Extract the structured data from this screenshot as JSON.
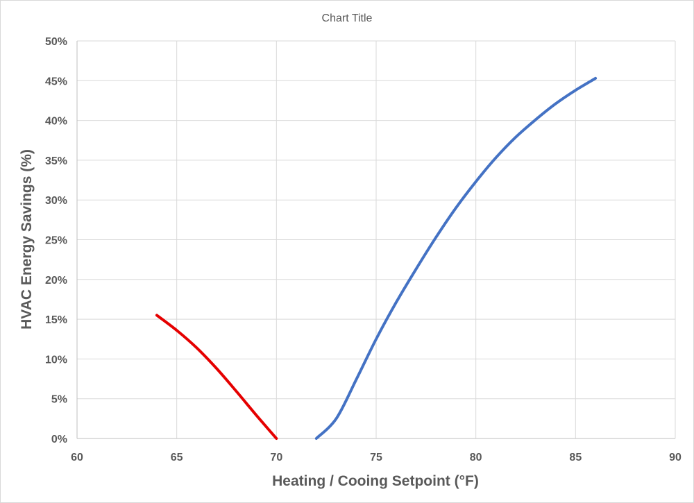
{
  "chart_data": {
    "type": "line",
    "title": "Chart Title",
    "xlabel": "Heating / Cooing Setpoint (°F)",
    "ylabel": "HVAC Energy Savings (%)",
    "xlim": [
      60,
      90
    ],
    "ylim": [
      0,
      50
    ],
    "x_ticks": [
      60,
      65,
      70,
      75,
      80,
      85,
      90
    ],
    "y_ticks": [
      0,
      5,
      10,
      15,
      20,
      25,
      30,
      35,
      40,
      45,
      50
    ],
    "y_tick_suffix": "%",
    "grid": true,
    "legend": "none",
    "series": [
      {
        "color": "#e50000",
        "x": [
          64,
          65,
          66,
          67,
          68,
          69,
          70
        ],
        "y": [
          15.5,
          13.6,
          11.4,
          8.8,
          5.9,
          2.9,
          0
        ]
      },
      {
        "color": "#4472c4",
        "x": [
          72,
          73,
          74,
          75,
          76,
          77,
          78,
          79,
          80,
          81,
          82,
          83,
          84,
          85,
          86
        ],
        "y": [
          0,
          2.5,
          7.4,
          12.5,
          17.1,
          21.3,
          25.3,
          29.0,
          32.3,
          35.3,
          37.9,
          40.1,
          42.1,
          43.8,
          45.3
        ]
      }
    ]
  }
}
